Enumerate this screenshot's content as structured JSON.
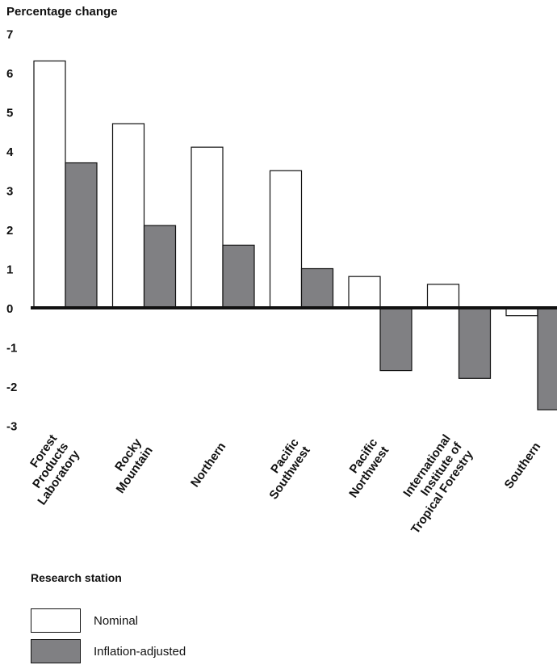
{
  "chart_data": {
    "type": "bar",
    "title": "",
    "ylabel": "Percentage change",
    "xlabel": "Research station",
    "ylim": [
      -3,
      7
    ],
    "yticks": [
      7,
      6,
      5,
      4,
      3,
      2,
      1,
      0,
      -1,
      -2,
      -3
    ],
    "categories": [
      [
        "Forest",
        "Products",
        "Laboratory"
      ],
      [
        "Rocky",
        "Mountain"
      ],
      [
        "Northern"
      ],
      [
        "Pacific",
        "Southwest"
      ],
      [
        "Pacific",
        "Northwest"
      ],
      [
        "International",
        "Institute of",
        "Tropical Forestry"
      ],
      [
        "Southern"
      ]
    ],
    "series": [
      {
        "name": "Nominal",
        "color": "#ffffff",
        "values": [
          6.3,
          4.7,
          4.1,
          3.5,
          0.8,
          0.6,
          -0.2
        ]
      },
      {
        "name": "Inflation-adjusted",
        "color": "#808083",
        "values": [
          3.7,
          2.1,
          1.6,
          1.0,
          -1.6,
          -1.8,
          -2.6
        ]
      }
    ],
    "legend_position": "bottom-left",
    "grid": false
  }
}
